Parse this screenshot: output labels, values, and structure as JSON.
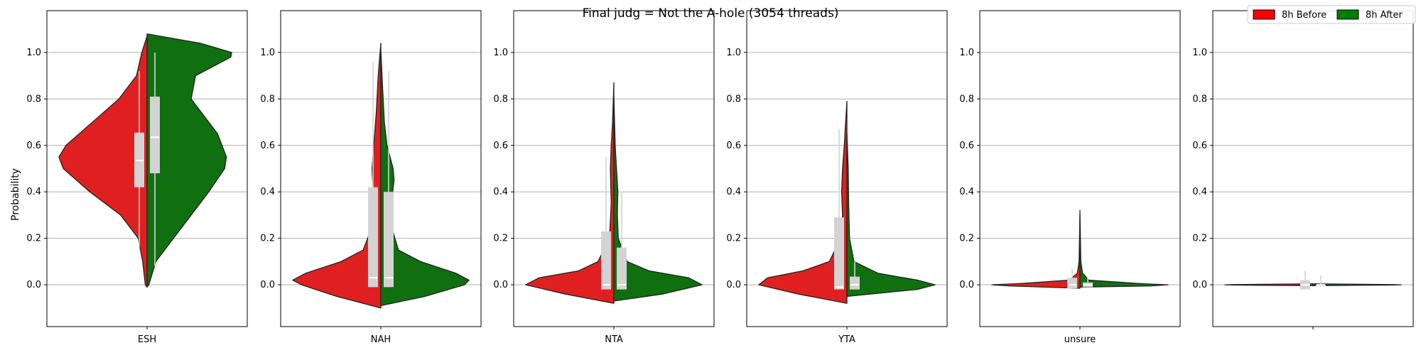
{
  "chart_data": {
    "type": "violin",
    "title": "Final judg = Not the A-hole (3054 threads)",
    "ylabel": "Probability",
    "ylim": [
      -0.18,
      1.18
    ],
    "yticks": [
      "0.0",
      "0.2",
      "0.4",
      "0.6",
      "0.8",
      "1.0"
    ],
    "ytick_values": [
      0.0,
      0.2,
      0.4,
      0.6,
      0.8,
      1.0
    ],
    "grid": "horizontal",
    "legend": {
      "placement": "top-right",
      "entries": [
        {
          "label": "8h Before",
          "color": "#ff0000"
        },
        {
          "label": "8h After",
          "color": "#008000"
        }
      ]
    },
    "series": [
      {
        "name": "8h Before",
        "color": "#e02020"
      },
      {
        "name": "8h After",
        "color": "#107010"
      }
    ],
    "panels": [
      {
        "category": "ESH",
        "before": {
          "density": [
            [
              -0.01,
              0.0
            ],
            [
              0.0,
              0.02
            ],
            [
              0.1,
              0.05
            ],
            [
              0.2,
              0.1
            ],
            [
              0.3,
              0.3
            ],
            [
              0.4,
              0.65
            ],
            [
              0.5,
              0.95
            ],
            [
              0.55,
              1.0
            ],
            [
              0.6,
              0.92
            ],
            [
              0.7,
              0.62
            ],
            [
              0.8,
              0.32
            ],
            [
              0.9,
              0.12
            ],
            [
              1.0,
              0.06
            ],
            [
              1.07,
              0.0
            ]
          ],
          "q1": 0.42,
          "median": 0.535,
          "q3": 0.655,
          "wmin": 0.16,
          "wmax": 0.92
        },
        "after": {
          "density": [
            [
              -0.01,
              0.0
            ],
            [
              0.0,
              0.02
            ],
            [
              0.1,
              0.1
            ],
            [
              0.2,
              0.3
            ],
            [
              0.3,
              0.5
            ],
            [
              0.4,
              0.7
            ],
            [
              0.5,
              0.88
            ],
            [
              0.55,
              0.9
            ],
            [
              0.65,
              0.8
            ],
            [
              0.8,
              0.5
            ],
            [
              0.9,
              0.55
            ],
            [
              0.98,
              0.95
            ],
            [
              1.0,
              0.96
            ],
            [
              1.04,
              0.6
            ],
            [
              1.08,
              0.0
            ]
          ],
          "q1": 0.48,
          "median": 0.635,
          "q3": 0.81,
          "wmin": 0.08,
          "wmax": 1.0
        }
      },
      {
        "category": "NAH",
        "before": {
          "density": [
            [
              -0.1,
              0.0
            ],
            [
              -0.05,
              0.5
            ],
            [
              0.0,
              0.9
            ],
            [
              0.02,
              1.0
            ],
            [
              0.05,
              0.85
            ],
            [
              0.1,
              0.45
            ],
            [
              0.15,
              0.2
            ],
            [
              0.25,
              0.1
            ],
            [
              0.35,
              0.08
            ],
            [
              0.5,
              0.1
            ],
            [
              0.65,
              0.07
            ],
            [
              0.75,
              0.05
            ],
            [
              0.9,
              0.03
            ],
            [
              1.04,
              0.0
            ]
          ],
          "q1": -0.01,
          "median": 0.03,
          "q3": 0.42,
          "wmin": -0.01,
          "wmax": 0.96
        },
        "after": {
          "density": [
            [
              -0.09,
              0.0
            ],
            [
              -0.05,
              0.5
            ],
            [
              0.0,
              0.95
            ],
            [
              0.02,
              1.0
            ],
            [
              0.05,
              0.85
            ],
            [
              0.1,
              0.45
            ],
            [
              0.15,
              0.2
            ],
            [
              0.25,
              0.12
            ],
            [
              0.35,
              0.12
            ],
            [
              0.45,
              0.15
            ],
            [
              0.5,
              0.14
            ],
            [
              0.6,
              0.07
            ],
            [
              0.7,
              0.04
            ],
            [
              0.85,
              0.02
            ],
            [
              1.01,
              0.0
            ]
          ],
          "q1": -0.01,
          "median": 0.03,
          "q3": 0.4,
          "wmin": -0.01,
          "wmax": 0.92
        }
      },
      {
        "category": "NTA",
        "before": {
          "density": [
            [
              -0.08,
              0.0
            ],
            [
              -0.04,
              0.55
            ],
            [
              0.0,
              1.0
            ],
            [
              0.03,
              0.85
            ],
            [
              0.06,
              0.4
            ],
            [
              0.1,
              0.18
            ],
            [
              0.2,
              0.05
            ],
            [
              0.35,
              0.03
            ],
            [
              0.5,
              0.04
            ],
            [
              0.6,
              0.03
            ],
            [
              0.7,
              0.015
            ],
            [
              0.87,
              0.0
            ]
          ],
          "q1": -0.02,
          "median": 0.0,
          "q3": 0.23,
          "wmin": -0.02,
          "wmax": 0.55
        },
        "after": {
          "density": [
            [
              -0.07,
              0.0
            ],
            [
              -0.04,
              0.55
            ],
            [
              0.0,
              1.0
            ],
            [
              0.03,
              0.85
            ],
            [
              0.06,
              0.4
            ],
            [
              0.1,
              0.15
            ],
            [
              0.2,
              0.05
            ],
            [
              0.3,
              0.04
            ],
            [
              0.4,
              0.045
            ],
            [
              0.5,
              0.03
            ],
            [
              0.6,
              0.015
            ],
            [
              0.81,
              0.0
            ]
          ],
          "q1": -0.02,
          "median": 0.0,
          "q3": 0.16,
          "wmin": -0.02,
          "wmax": 0.4
        }
      },
      {
        "category": "YTA",
        "before": {
          "density": [
            [
              -0.08,
              0.0
            ],
            [
              -0.04,
              0.55
            ],
            [
              0.0,
              1.0
            ],
            [
              0.03,
              0.9
            ],
            [
              0.06,
              0.5
            ],
            [
              0.1,
              0.2
            ],
            [
              0.2,
              0.07
            ],
            [
              0.3,
              0.05
            ],
            [
              0.4,
              0.06
            ],
            [
              0.5,
              0.05
            ],
            [
              0.6,
              0.03
            ],
            [
              0.7,
              0.015
            ],
            [
              0.79,
              0.0
            ]
          ],
          "q1": -0.02,
          "median": -0.01,
          "q3": 0.29,
          "wmin": -0.02,
          "wmax": 0.67
        },
        "after": {
          "density": [
            [
              -0.05,
              0.0
            ],
            [
              -0.02,
              0.8
            ],
            [
              0.0,
              1.0
            ],
            [
              0.02,
              0.8
            ],
            [
              0.05,
              0.35
            ],
            [
              0.1,
              0.08
            ],
            [
              0.2,
              0.03
            ],
            [
              0.35,
              0.02
            ],
            [
              0.5,
              0.015
            ],
            [
              0.65,
              0.0
            ]
          ],
          "q1": -0.02,
          "median": 0.0,
          "q3": 0.035,
          "wmin": -0.02,
          "wmax": 0.1
        }
      },
      {
        "category": "unsure",
        "before": {
          "density": [
            [
              -0.015,
              0.0
            ],
            [
              -0.005,
              0.8
            ],
            [
              0.0,
              1.0
            ],
            [
              0.005,
              0.7
            ],
            [
              0.02,
              0.12
            ],
            [
              0.05,
              0.03
            ],
            [
              0.1,
              0.01
            ],
            [
              0.2,
              0.005
            ],
            [
              0.32,
              0.0
            ]
          ],
          "q1": -0.015,
          "median": 0.0,
          "q3": 0.03,
          "wmin": -0.015,
          "wmax": 0.07
        },
        "after": {
          "density": [
            [
              -0.01,
              0.0
            ],
            [
              -0.005,
              0.8
            ],
            [
              0.0,
              1.0
            ],
            [
              0.005,
              0.7
            ],
            [
              0.02,
              0.1
            ],
            [
              0.05,
              0.03
            ],
            [
              0.1,
              0.01
            ],
            [
              0.2,
              0.005
            ],
            [
              0.3,
              0.0
            ]
          ],
          "q1": -0.01,
          "median": 0.0,
          "q3": 0.01,
          "wmin": -0.01,
          "wmax": 0.03
        }
      },
      {
        "category": "",
        "before": {
          "density": [
            [
              -0.004,
              0.0
            ],
            [
              -0.001,
              0.9
            ],
            [
              0.0,
              1.0
            ],
            [
              0.001,
              0.9
            ],
            [
              0.004,
              0.0
            ]
          ],
          "q1": -0.02,
          "median": 0.0,
          "q3": 0.02,
          "wmin": -0.02,
          "wmax": 0.06
        },
        "after": {
          "density": [
            [
              -0.004,
              0.0
            ],
            [
              -0.001,
              0.9
            ],
            [
              0.0,
              1.0
            ],
            [
              0.001,
              0.9
            ],
            [
              0.004,
              0.0
            ]
          ],
          "q1": 0.0,
          "median": 0.0,
          "q3": 0.0,
          "wmin": 0.0,
          "wmax": 0.04
        }
      }
    ]
  }
}
